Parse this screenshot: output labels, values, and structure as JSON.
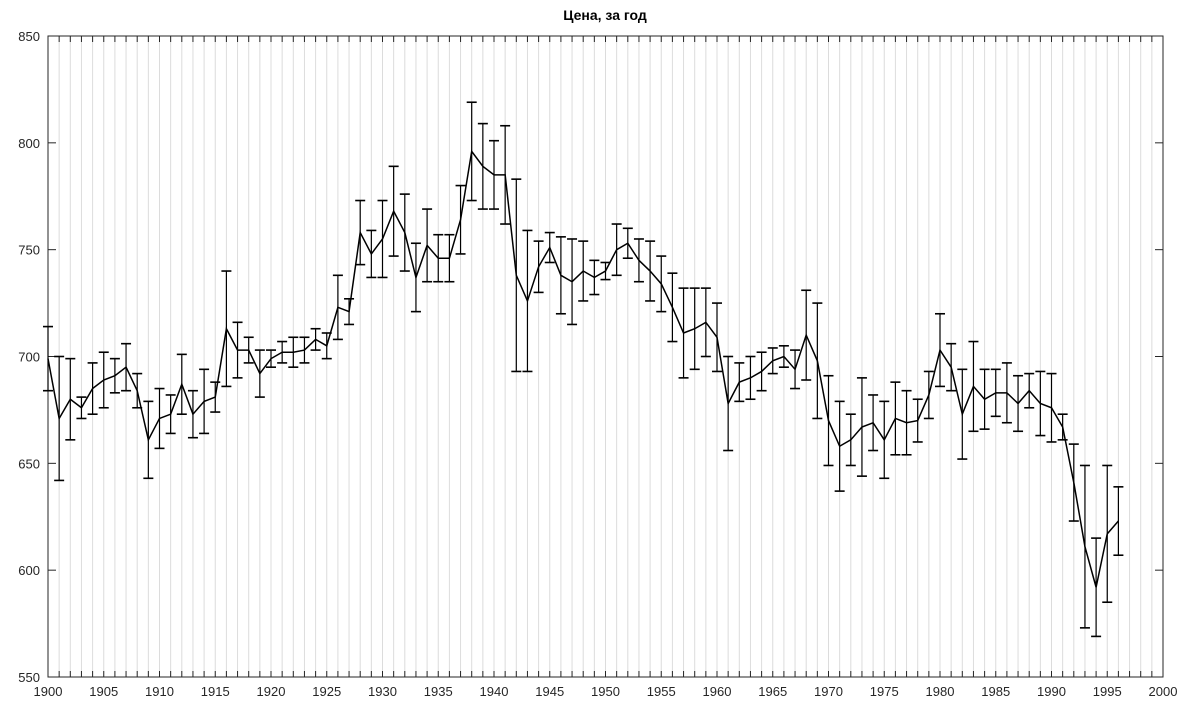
{
  "chart_data": {
    "type": "line",
    "title": "Цена, за год",
    "xlabel": "",
    "ylabel": "",
    "xlim": [
      1900,
      2000
    ],
    "ylim": [
      550,
      850
    ],
    "xticks": [
      1900,
      1905,
      1910,
      1915,
      1920,
      1925,
      1930,
      1935,
      1940,
      1945,
      1950,
      1955,
      1960,
      1965,
      1970,
      1975,
      1980,
      1985,
      1990,
      1995,
      2000
    ],
    "yticks": [
      550,
      600,
      650,
      700,
      750,
      800,
      850
    ],
    "grid": true,
    "line_color": "#000000",
    "grid_color": "#dcdcdc",
    "series": [
      {
        "x": [
          1900,
          1901,
          1902,
          1903,
          1904,
          1905,
          1906,
          1907,
          1908,
          1909,
          1910,
          1911,
          1912,
          1913,
          1914,
          1915,
          1916,
          1917,
          1918,
          1919,
          1920,
          1921,
          1922,
          1923,
          1924,
          1925,
          1926,
          1927,
          1928,
          1929,
          1930,
          1931,
          1932,
          1933,
          1934,
          1935,
          1936,
          1937,
          1938,
          1939,
          1940,
          1941,
          1942,
          1943,
          1944,
          1945,
          1946,
          1947,
          1948,
          1949,
          1950,
          1951,
          1952,
          1953,
          1954,
          1955,
          1956,
          1957,
          1958,
          1959,
          1960,
          1961,
          1962,
          1963,
          1964,
          1965,
          1966,
          1967,
          1968,
          1969,
          1970,
          1971,
          1972,
          1973,
          1974,
          1975,
          1976,
          1977,
          1978,
          1979,
          1980,
          1981,
          1982,
          1983,
          1984,
          1985,
          1986,
          1987,
          1988,
          1989,
          1990,
          1991,
          1992,
          1993,
          1994,
          1995,
          1996
        ],
        "y": [
          699,
          671,
          680,
          676,
          685,
          689,
          691,
          695,
          684,
          661,
          671,
          673,
          687,
          673,
          679,
          681,
          713,
          703,
          703,
          692,
          699,
          702,
          702,
          703,
          708,
          705,
          723,
          721,
          758,
          748,
          755,
          768,
          758,
          737,
          752,
          746,
          746,
          764,
          796,
          789,
          785,
          785,
          738,
          726,
          742,
          751,
          738,
          735,
          740,
          737,
          740,
          750,
          753,
          745,
          740,
          734,
          723,
          711,
          713,
          716,
          709,
          678,
          688,
          690,
          693,
          698,
          700,
          694,
          710,
          698,
          670,
          658,
          661,
          667,
          669,
          661,
          671,
          669,
          670,
          682,
          703,
          695,
          673,
          686,
          680,
          683,
          683,
          678,
          684,
          678,
          676,
          667,
          641,
          611,
          592,
          617,
          623
        ],
        "err": [
          15,
          29,
          19,
          5,
          12,
          13,
          8,
          11,
          8,
          18,
          14,
          9,
          14,
          11,
          15,
          7,
          27,
          13,
          6,
          11,
          4,
          5,
          7,
          6,
          5,
          6,
          15,
          6,
          15,
          11,
          18,
          21,
          18,
          16,
          17,
          11,
          11,
          16,
          23,
          20,
          16,
          23,
          45,
          33,
          12,
          7,
          18,
          20,
          14,
          8,
          4,
          12,
          7,
          10,
          14,
          13,
          16,
          21,
          19,
          16,
          16,
          22,
          9,
          10,
          9,
          6,
          5,
          9,
          21,
          27,
          21,
          21,
          12,
          23,
          13,
          18,
          17,
          15,
          10,
          11,
          17,
          11,
          21,
          21,
          14,
          11,
          14,
          13,
          8,
          15,
          16,
          6,
          18,
          38,
          23,
          32,
          16
        ]
      }
    ]
  }
}
